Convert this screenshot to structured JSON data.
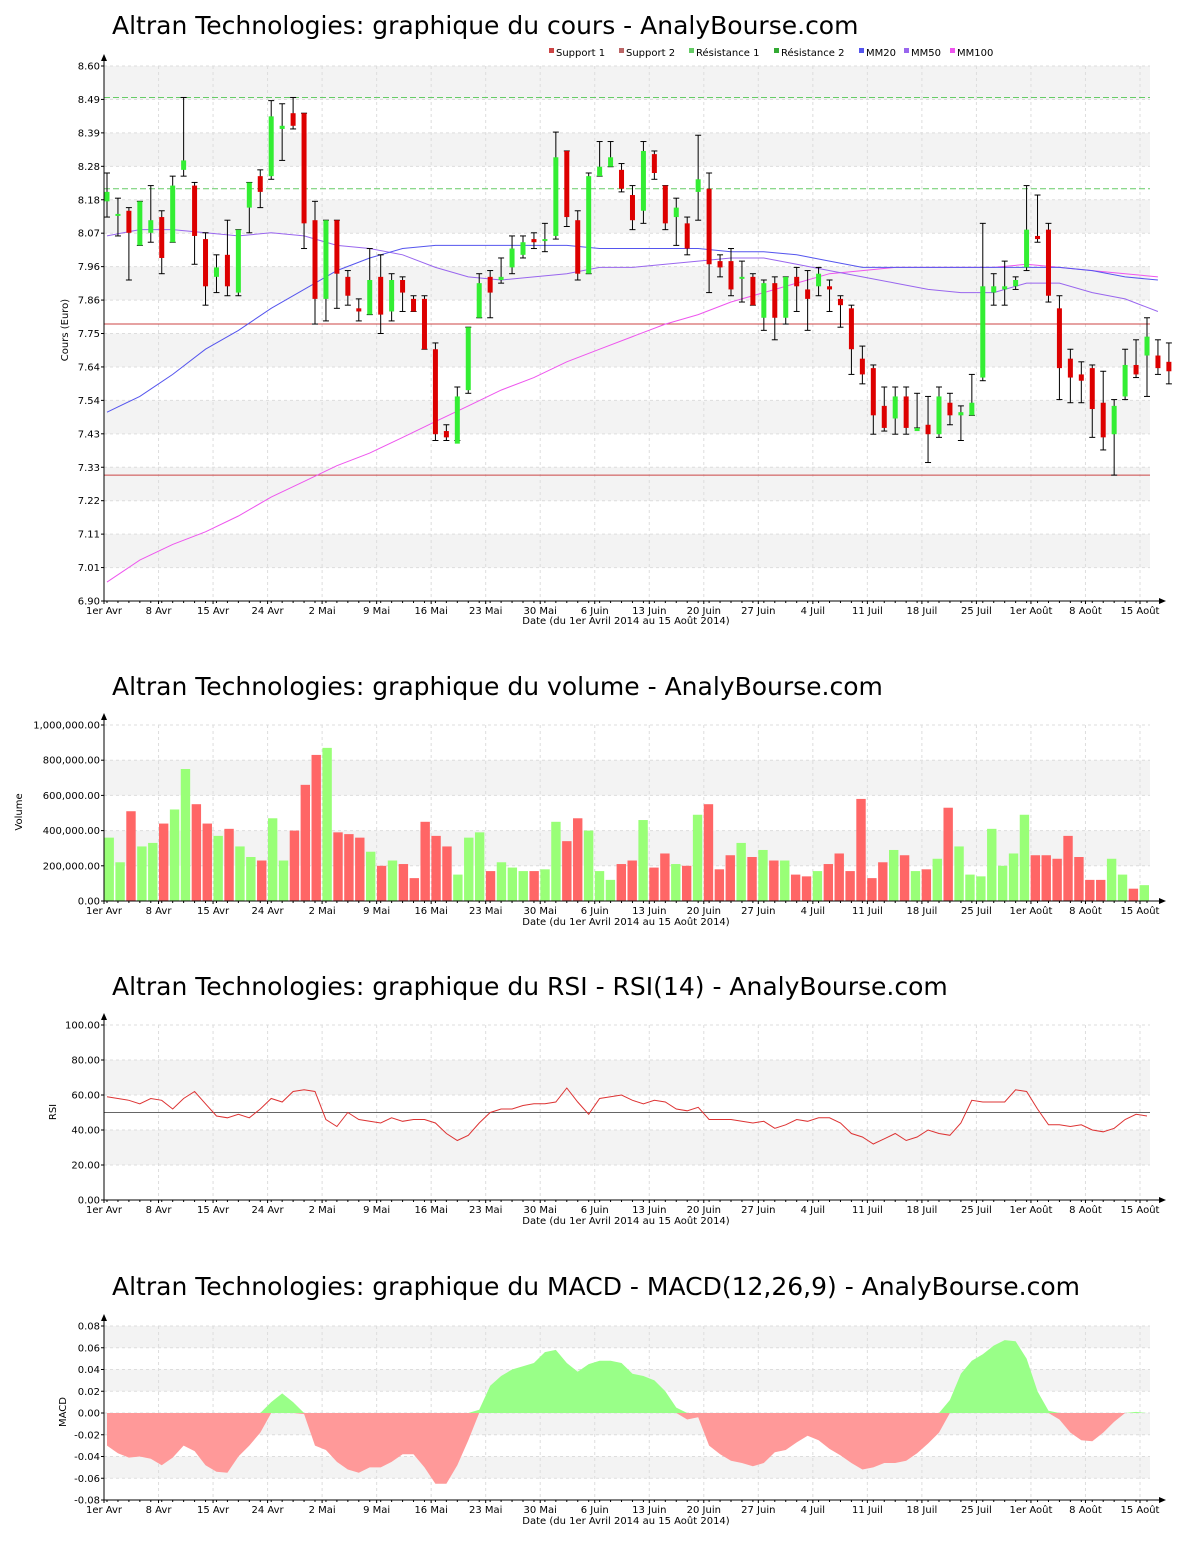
{
  "x_tick_labels": [
    "1er Avr",
    "8 Avr",
    "15 Avr",
    "24 Avr",
    "2 Mai",
    "9 Mai",
    "16 Mai",
    "23 Mai",
    "30 Mai",
    "6 Juin",
    "13 Juin",
    "20 Juin",
    "27 Juin",
    "4 Juil",
    "11 Juil",
    "18 Juil",
    "25 Juil",
    "1er Août",
    "8 Août",
    "15 Août"
  ],
  "x_label": "Date (du 1er Avril 2014 au 15 Août 2014)",
  "colors": {
    "up": "#33ee33",
    "down": "#dd0000",
    "vol_up": "#99ff77",
    "vol_down": "#ff6666",
    "macd_pos": "#99ff88",
    "macd_neg": "#ff9999",
    "mm20": "#5555ee",
    "mm50": "#9966ee",
    "mm100": "#ee55ee",
    "support": "#cc4444",
    "resistance": "#66cc66",
    "rsi": "#dd3333"
  },
  "chart_data": [
    {
      "type": "candlestick",
      "title": "Altran Technologies: graphique du cours - AnalyBourse.com",
      "ylabel": "Cours (Euro)",
      "ylim": [
        6.9,
        8.6
      ],
      "y_ticks": [
        "6.90",
        "7.01",
        "7.11",
        "7.22",
        "7.33",
        "7.43",
        "7.54",
        "7.64",
        "7.75",
        "7.86",
        "7.96",
        "8.07",
        "8.18",
        "8.28",
        "8.39",
        "8.49",
        "8.60"
      ],
      "legend": [
        "Support 1",
        "Support 2",
        "Résistance 1",
        "Résistance 2",
        "MM20",
        "MM50",
        "MM100"
      ],
      "support": [
        7.3,
        7.78
      ],
      "resistance": [
        8.21,
        8.5
      ],
      "candles": [
        [
          8.17,
          8.2,
          8.26,
          8.12
        ],
        [
          8.13,
          8.13,
          8.18,
          8.06
        ],
        [
          8.14,
          8.07,
          8.15,
          7.92
        ],
        [
          8.03,
          8.17,
          8.17,
          8.03
        ],
        [
          8.07,
          8.11,
          8.22,
          8.04
        ],
        [
          8.12,
          7.99,
          8.14,
          7.94
        ],
        [
          8.04,
          8.22,
          8.25,
          8.04
        ],
        [
          8.27,
          8.3,
          8.5,
          8.25
        ],
        [
          8.22,
          8.06,
          8.23,
          7.97
        ],
        [
          8.05,
          7.9,
          8.07,
          7.84
        ],
        [
          7.93,
          7.96,
          8.0,
          7.88
        ],
        [
          8.0,
          7.9,
          8.11,
          7.87
        ],
        [
          7.88,
          8.08,
          8.08,
          7.87
        ],
        [
          8.15,
          8.23,
          8.23,
          8.07
        ],
        [
          8.25,
          8.2,
          8.27,
          8.15
        ],
        [
          8.25,
          8.44,
          8.49,
          8.24
        ],
        [
          8.4,
          8.41,
          8.48,
          8.3
        ],
        [
          8.45,
          8.41,
          8.5,
          8.4
        ],
        [
          8.45,
          8.1,
          8.45,
          8.02
        ],
        [
          8.11,
          7.86,
          8.17,
          7.78
        ],
        [
          7.86,
          8.11,
          8.11,
          7.79
        ],
        [
          8.11,
          7.94,
          8.11,
          7.83
        ],
        [
          7.93,
          7.87,
          7.95,
          7.84
        ],
        [
          7.83,
          7.82,
          7.86,
          7.79
        ],
        [
          7.81,
          7.92,
          8.02,
          7.81
        ],
        [
          7.93,
          7.81,
          8.0,
          7.75
        ],
        [
          7.82,
          7.92,
          7.94,
          7.79
        ],
        [
          7.92,
          7.88,
          7.93,
          7.82
        ],
        [
          7.86,
          7.82,
          7.87,
          7.82
        ],
        [
          7.86,
          7.7,
          7.87,
          7.7
        ],
        [
          7.7,
          7.43,
          7.72,
          7.41
        ],
        [
          7.44,
          7.42,
          7.46,
          7.41
        ],
        [
          7.4,
          7.55,
          7.58,
          7.41
        ],
        [
          7.57,
          7.77,
          7.77,
          7.56
        ],
        [
          7.8,
          7.91,
          7.94,
          7.8
        ],
        [
          7.93,
          7.88,
          7.95,
          7.8
        ],
        [
          7.92,
          7.93,
          7.99,
          7.91
        ],
        [
          7.96,
          8.02,
          8.06,
          7.94
        ],
        [
          8.0,
          8.04,
          8.06,
          7.99
        ],
        [
          8.05,
          8.04,
          8.07,
          8.02
        ],
        [
          8.05,
          8.05,
          8.1,
          8.01
        ],
        [
          8.06,
          8.31,
          8.39,
          8.05
        ],
        [
          8.33,
          8.12,
          8.33,
          8.09
        ],
        [
          8.11,
          7.94,
          8.14,
          7.92
        ],
        [
          7.94,
          8.25,
          8.26,
          7.94
        ],
        [
          8.25,
          8.28,
          8.36,
          8.25
        ],
        [
          8.28,
          8.31,
          8.36,
          8.28
        ],
        [
          8.27,
          8.21,
          8.29,
          8.2
        ],
        [
          8.19,
          8.11,
          8.22,
          8.08
        ],
        [
          8.14,
          8.33,
          8.36,
          8.1
        ],
        [
          8.32,
          8.26,
          8.33,
          8.24
        ],
        [
          8.22,
          8.1,
          8.22,
          8.08
        ],
        [
          8.12,
          8.15,
          8.18,
          8.03
        ],
        [
          8.1,
          8.02,
          8.12,
          8.0
        ],
        [
          8.2,
          8.24,
          8.38,
          8.11
        ],
        [
          8.21,
          7.97,
          8.26,
          7.88
        ],
        [
          7.98,
          7.96,
          8.0,
          7.93
        ],
        [
          7.98,
          7.89,
          8.02,
          7.87
        ],
        [
          7.93,
          7.93,
          7.98,
          7.85
        ],
        [
          7.93,
          7.84,
          7.94,
          7.84
        ],
        [
          7.8,
          7.91,
          7.92,
          7.76
        ],
        [
          7.91,
          7.8,
          7.93,
          7.73
        ],
        [
          7.8,
          7.93,
          7.93,
          7.78
        ],
        [
          7.93,
          7.9,
          7.96,
          7.82
        ],
        [
          7.89,
          7.86,
          7.95,
          7.76
        ],
        [
          7.9,
          7.94,
          7.96,
          7.87
        ],
        [
          7.9,
          7.89,
          7.92,
          7.82
        ],
        [
          7.86,
          7.84,
          7.87,
          7.77
        ],
        [
          7.83,
          7.7,
          7.84,
          7.62
        ],
        [
          7.67,
          7.62,
          7.71,
          7.59
        ],
        [
          7.64,
          7.49,
          7.65,
          7.43
        ],
        [
          7.52,
          7.45,
          7.58,
          7.44
        ],
        [
          7.48,
          7.55,
          7.58,
          7.43
        ],
        [
          7.55,
          7.45,
          7.58,
          7.43
        ],
        [
          7.44,
          7.45,
          7.56,
          7.45
        ],
        [
          7.46,
          7.43,
          7.55,
          7.34
        ],
        [
          7.43,
          7.55,
          7.58,
          7.42
        ],
        [
          7.53,
          7.49,
          7.56,
          7.46
        ],
        [
          7.49,
          7.5,
          7.52,
          7.41
        ],
        [
          7.49,
          7.53,
          7.62,
          7.49
        ],
        [
          7.61,
          7.9,
          8.1,
          7.6
        ],
        [
          7.88,
          7.9,
          7.94,
          7.84
        ],
        [
          7.89,
          7.9,
          7.98,
          7.84
        ],
        [
          7.9,
          7.92,
          7.93,
          7.89
        ],
        [
          7.96,
          8.08,
          8.22,
          7.95
        ],
        [
          8.06,
          8.05,
          8.19,
          8.04
        ],
        [
          8.08,
          7.87,
          8.1,
          7.85
        ],
        [
          7.83,
          7.64,
          7.87,
          7.54
        ],
        [
          7.67,
          7.61,
          7.7,
          7.53
        ],
        [
          7.62,
          7.6,
          7.66,
          7.53
        ],
        [
          7.64,
          7.51,
          7.65,
          7.42
        ],
        [
          7.53,
          7.42,
          7.63,
          7.38
        ],
        [
          7.43,
          7.52,
          7.54,
          7.3
        ],
        [
          7.55,
          7.65,
          7.7,
          7.54
        ],
        [
          7.65,
          7.62,
          7.73,
          7.61
        ],
        [
          7.68,
          7.74,
          7.8,
          7.55
        ],
        [
          7.68,
          7.64,
          7.73,
          7.62
        ],
        [
          7.66,
          7.63,
          7.72,
          7.59
        ]
      ],
      "mm20": [
        [
          0,
          7.5
        ],
        [
          3,
          7.55
        ],
        [
          6,
          7.62
        ],
        [
          9,
          7.7
        ],
        [
          12,
          7.76
        ],
        [
          15,
          7.83
        ],
        [
          18,
          7.89
        ],
        [
          21,
          7.95
        ],
        [
          24,
          7.99
        ],
        [
          27,
          8.02
        ],
        [
          30,
          8.03
        ],
        [
          33,
          8.03
        ],
        [
          36,
          8.03
        ],
        [
          39,
          8.03
        ],
        [
          42,
          8.03
        ],
        [
          45,
          8.02
        ],
        [
          48,
          8.02
        ],
        [
          51,
          8.02
        ],
        [
          54,
          8.02
        ],
        [
          57,
          8.01
        ],
        [
          60,
          8.01
        ],
        [
          63,
          8.0
        ],
        [
          66,
          7.98
        ],
        [
          69,
          7.96
        ],
        [
          72,
          7.96
        ],
        [
          75,
          7.96
        ],
        [
          78,
          7.96
        ],
        [
          81,
          7.96
        ],
        [
          84,
          7.96
        ],
        [
          87,
          7.96
        ],
        [
          90,
          7.95
        ],
        [
          93,
          7.93
        ],
        [
          96,
          7.92
        ]
      ],
      "mm50": [
        [
          0,
          8.06
        ],
        [
          3,
          8.08
        ],
        [
          6,
          8.08
        ],
        [
          9,
          8.07
        ],
        [
          12,
          8.06
        ],
        [
          15,
          8.07
        ],
        [
          18,
          8.06
        ],
        [
          21,
          8.03
        ],
        [
          24,
          8.02
        ],
        [
          27,
          8.0
        ],
        [
          30,
          7.96
        ],
        [
          33,
          7.93
        ],
        [
          36,
          7.92
        ],
        [
          39,
          7.93
        ],
        [
          42,
          7.94
        ],
        [
          45,
          7.96
        ],
        [
          48,
          7.96
        ],
        [
          51,
          7.97
        ],
        [
          54,
          7.98
        ],
        [
          57,
          7.99
        ],
        [
          60,
          7.99
        ],
        [
          63,
          7.97
        ],
        [
          66,
          7.95
        ],
        [
          69,
          7.93
        ],
        [
          72,
          7.91
        ],
        [
          75,
          7.89
        ],
        [
          78,
          7.88
        ],
        [
          81,
          7.88
        ],
        [
          84,
          7.91
        ],
        [
          87,
          7.91
        ],
        [
          90,
          7.88
        ],
        [
          93,
          7.86
        ],
        [
          96,
          7.82
        ]
      ],
      "mm100": [
        [
          0,
          6.96
        ],
        [
          3,
          7.03
        ],
        [
          6,
          7.08
        ],
        [
          9,
          7.12
        ],
        [
          12,
          7.17
        ],
        [
          15,
          7.23
        ],
        [
          18,
          7.28
        ],
        [
          21,
          7.33
        ],
        [
          24,
          7.37
        ],
        [
          27,
          7.42
        ],
        [
          30,
          7.47
        ],
        [
          33,
          7.52
        ],
        [
          36,
          7.57
        ],
        [
          39,
          7.61
        ],
        [
          42,
          7.66
        ],
        [
          45,
          7.7
        ],
        [
          48,
          7.74
        ],
        [
          51,
          7.78
        ],
        [
          54,
          7.81
        ],
        [
          57,
          7.85
        ],
        [
          60,
          7.88
        ],
        [
          63,
          7.91
        ],
        [
          66,
          7.94
        ],
        [
          69,
          7.95
        ],
        [
          72,
          7.96
        ],
        [
          75,
          7.96
        ],
        [
          78,
          7.96
        ],
        [
          81,
          7.96
        ],
        [
          84,
          7.97
        ],
        [
          87,
          7.96
        ],
        [
          90,
          7.95
        ],
        [
          93,
          7.94
        ],
        [
          96,
          7.93
        ]
      ]
    },
    {
      "type": "bar",
      "title": "Altran Technologies: graphique du volume - AnalyBourse.com",
      "ylabel": "Volume",
      "ylim": [
        0,
        1000000
      ],
      "y_ticks": [
        "0.00",
        "200,000.00",
        "400,000.00",
        "600,000.00",
        "800,000.00",
        "1,000,000.00"
      ],
      "volumes": [
        360000,
        220000,
        510000,
        310000,
        330000,
        440000,
        520000,
        750000,
        550000,
        440000,
        370000,
        410000,
        310000,
        250000,
        230000,
        470000,
        230000,
        400000,
        660000,
        830000,
        870000,
        390000,
        380000,
        360000,
        280000,
        200000,
        230000,
        210000,
        130000,
        450000,
        370000,
        310000,
        150000,
        360000,
        390000,
        170000,
        220000,
        190000,
        170000,
        170000,
        180000,
        450000,
        340000,
        470000,
        400000,
        170000,
        120000,
        210000,
        230000,
        460000,
        190000,
        270000,
        210000,
        200000,
        490000,
        550000,
        180000,
        260000,
        330000,
        250000,
        290000,
        230000,
        230000,
        150000,
        140000,
        170000,
        210000,
        270000,
        170000,
        580000,
        130000,
        220000,
        290000,
        260000,
        170000,
        180000,
        240000,
        530000,
        310000,
        150000,
        140000,
        410000,
        200000,
        270000,
        490000,
        260000,
        260000,
        240000,
        370000,
        250000,
        120000,
        120000,
        240000,
        150000,
        70000,
        90000
      ]
    },
    {
      "type": "line",
      "title": "Altran Technologies: graphique du RSI - RSI(14) - AnalyBourse.com",
      "ylabel": "RSI",
      "ylim": [
        0,
        100
      ],
      "y_ticks": [
        "0.00",
        "20.00",
        "40.00",
        "60.00",
        "80.00",
        "100.00"
      ],
      "reference": 50,
      "rsi": [
        59,
        58,
        57,
        55,
        58,
        57,
        52,
        58,
        62,
        55,
        48,
        47,
        49,
        47,
        52,
        58,
        56,
        62,
        63,
        62,
        46,
        42,
        50,
        46,
        45,
        44,
        47,
        45,
        46,
        46,
        44,
        38,
        34,
        37,
        44,
        50,
        52,
        52,
        54,
        55,
        55,
        56,
        64,
        56,
        49,
        58,
        59,
        60,
        57,
        55,
        57,
        56,
        52,
        51,
        53,
        46,
        46,
        46,
        45,
        44,
        45,
        41,
        43,
        46,
        45,
        47,
        47,
        44,
        38,
        36,
        32,
        35,
        38,
        34,
        36,
        40,
        38,
        37,
        44,
        57,
        56,
        56,
        56,
        63,
        62,
        52,
        43,
        43,
        42,
        43,
        40,
        39,
        41,
        46,
        49,
        48
      ]
    },
    {
      "type": "area",
      "title": "Altran Technologies: graphique du MACD - MACD(12,26,9) - AnalyBourse.com",
      "ylabel": "MACD",
      "ylim": [
        -0.08,
        0.08
      ],
      "y_ticks": [
        "-0.08",
        "-0.06",
        "-0.04",
        "-0.02",
        "0.00",
        "0.02",
        "0.04",
        "0.06",
        "0.08"
      ],
      "macd": [
        -0.03,
        -0.037,
        -0.041,
        -0.04,
        -0.042,
        -0.048,
        -0.041,
        -0.03,
        -0.035,
        -0.048,
        -0.054,
        -0.055,
        -0.04,
        -0.03,
        -0.018,
        0.01,
        0.018,
        0.01,
        -0.001,
        -0.03,
        -0.034,
        -0.045,
        -0.052,
        -0.055,
        -0.05,
        -0.05,
        -0.045,
        -0.038,
        -0.038,
        -0.05,
        -0.065,
        -0.065,
        -0.048,
        -0.025,
        0.003,
        0.025,
        0.034,
        0.04,
        0.043,
        0.046,
        0.056,
        0.058,
        0.046,
        0.038,
        0.045,
        0.048,
        0.048,
        0.046,
        0.036,
        0.034,
        0.03,
        0.02,
        0.005,
        -0.006,
        -0.004,
        -0.03,
        -0.038,
        -0.044,
        -0.046,
        -0.049,
        -0.046,
        -0.036,
        -0.034,
        -0.027,
        -0.021,
        -0.025,
        -0.033,
        -0.039,
        -0.046,
        -0.052,
        -0.05,
        -0.046,
        -0.046,
        -0.044,
        -0.037,
        -0.028,
        -0.018,
        0.012,
        0.036,
        0.048,
        0.054,
        0.062,
        0.067,
        0.066,
        0.05,
        0.02,
        0.002,
        -0.006,
        -0.018,
        -0.025,
        -0.026,
        -0.018,
        -0.008,
        0.0,
        0.001,
        0.0
      ]
    }
  ]
}
